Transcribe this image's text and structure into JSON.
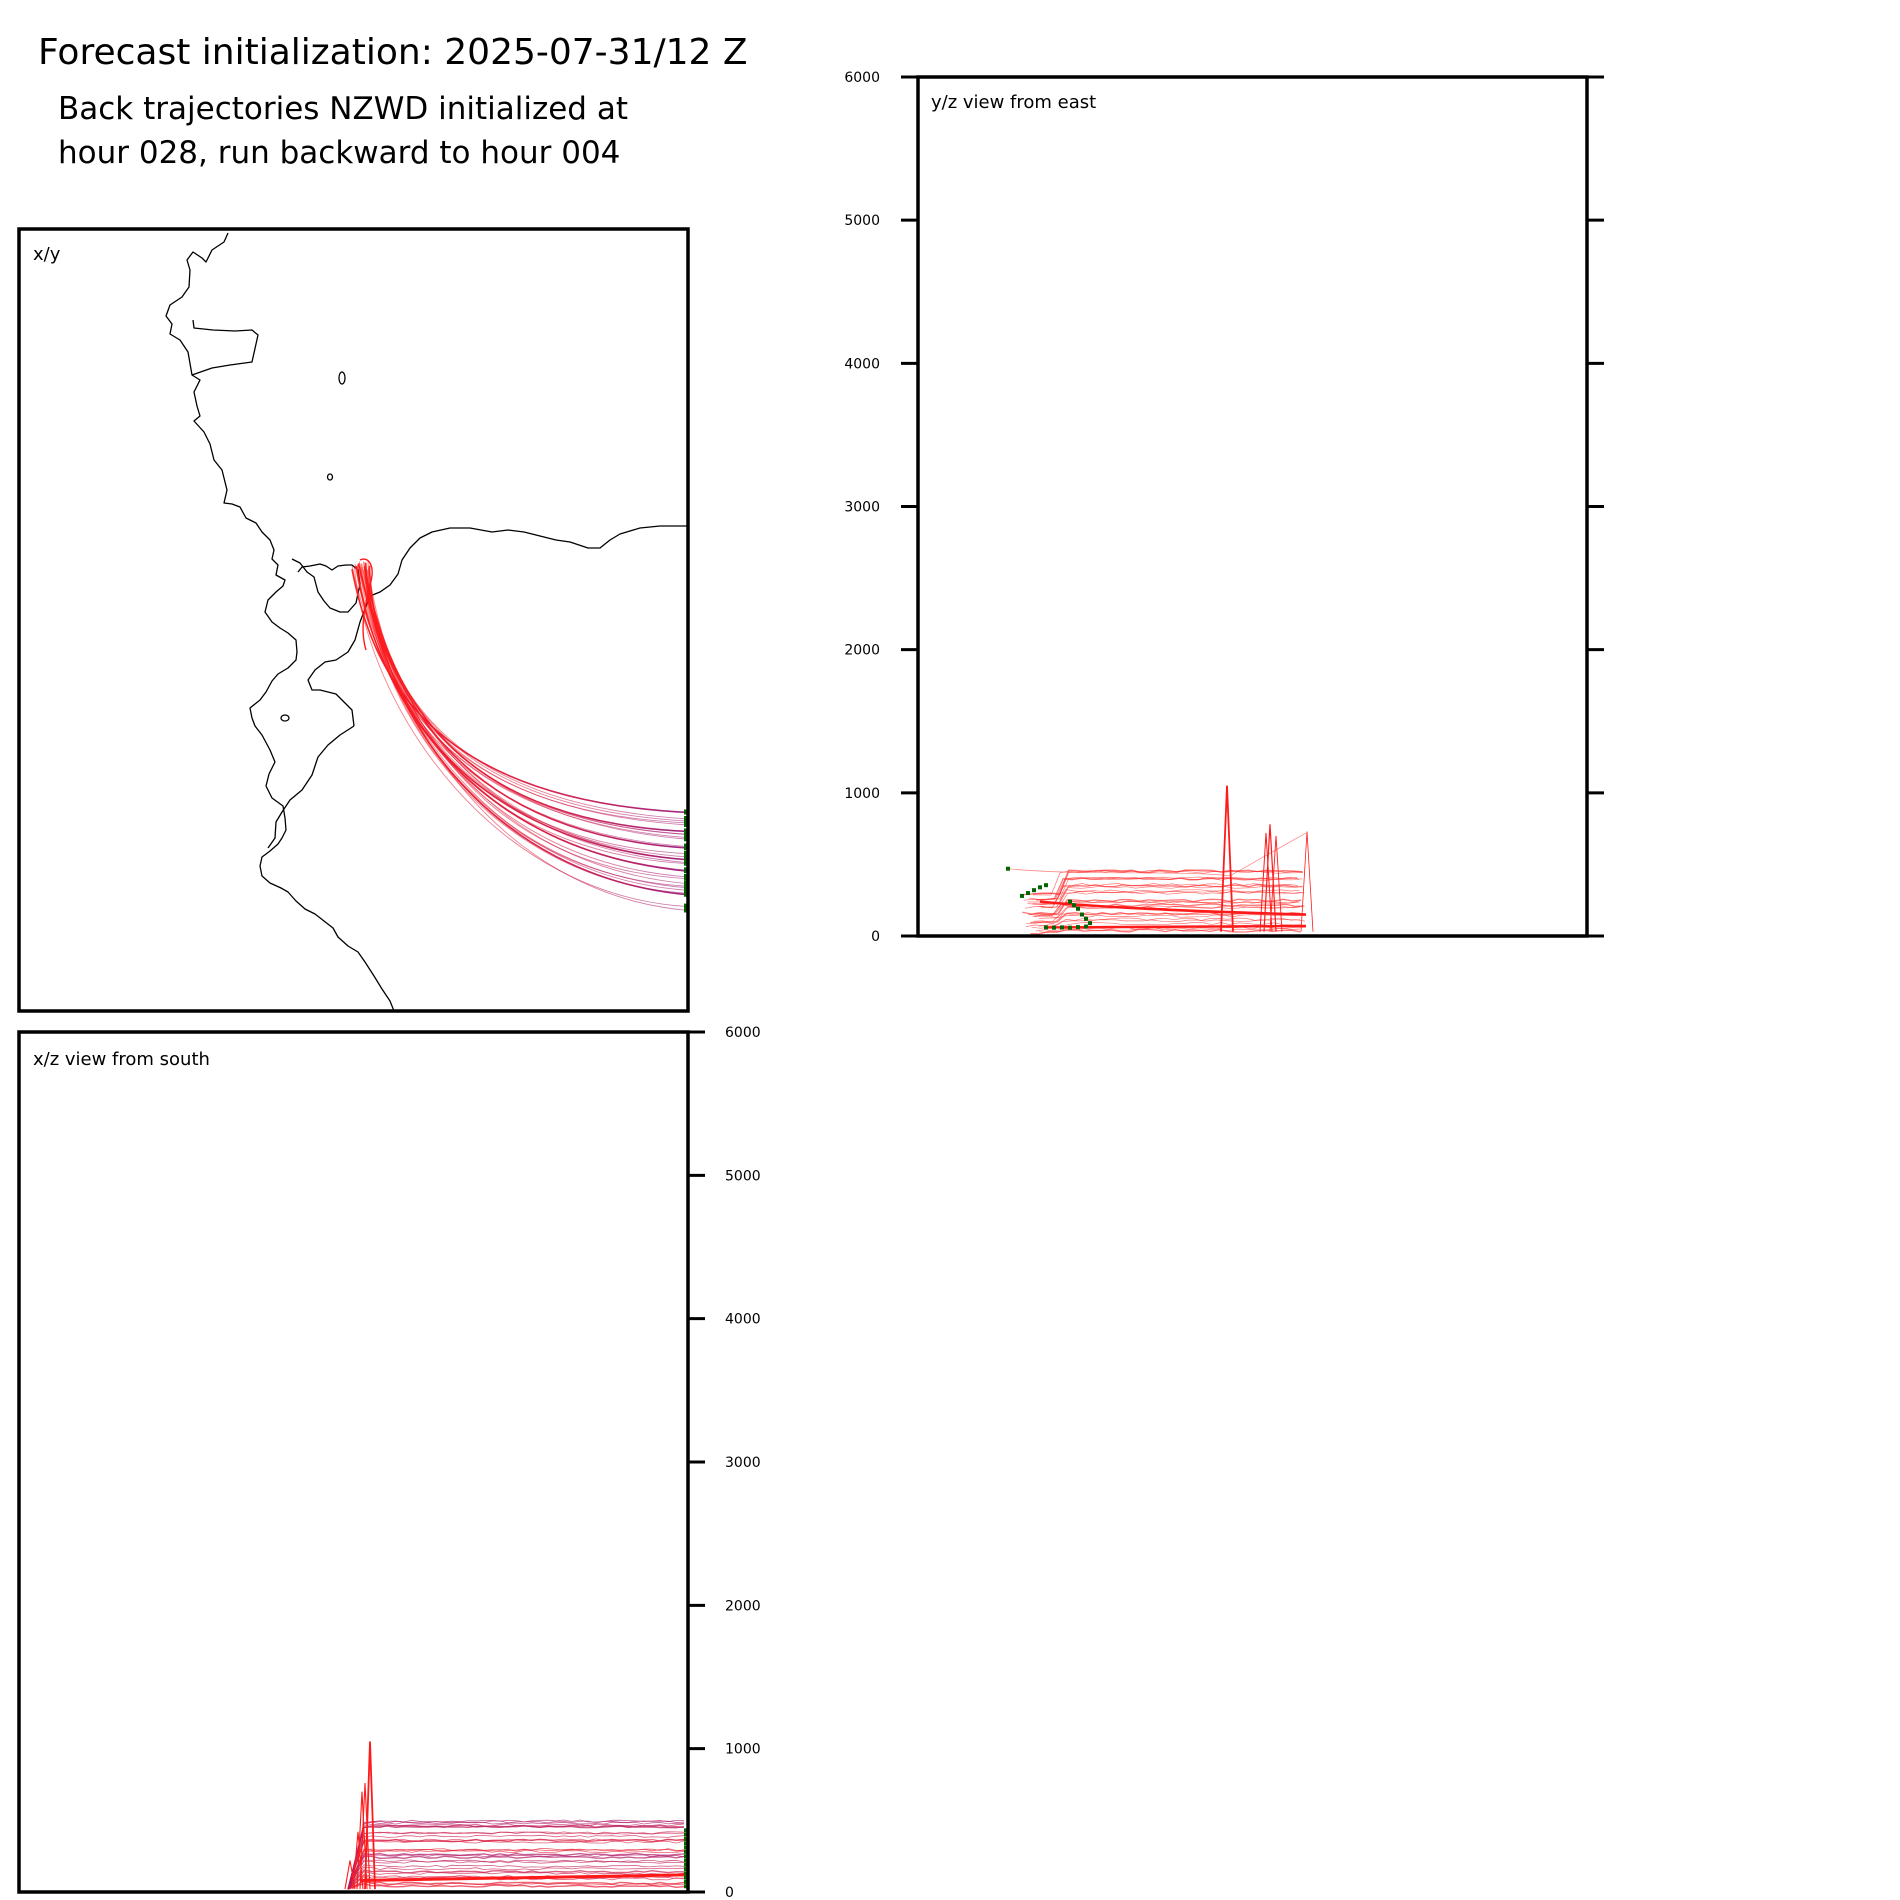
{
  "header": {
    "title": "Forecast initialization: 2025-07-31/12 Z",
    "subtitle_line1": "Back trajectories NZWD initialized at",
    "subtitle_line2": "hour 028, run backward to hour 004"
  },
  "colors": {
    "trajectory_start": "#ff1a1a",
    "trajectory_end": "#8b1a8b",
    "endpoint_marker": "#006400",
    "coastline": "#000000"
  },
  "chart_data": [
    {
      "type": "line",
      "panel": "map",
      "label": "x/y",
      "note": "plan view of back trajectories; trajectories fan from the east edge toward the coast",
      "series_count": 30,
      "trajectory_endpoints_at": "east edge"
    },
    {
      "type": "line",
      "panel": "xz",
      "label": "x/z view from south",
      "ylim": [
        0,
        6000
      ],
      "yticks": [
        "0",
        "1000",
        "2000",
        "3000",
        "4000",
        "5000",
        "6000"
      ],
      "tick_side": "right",
      "peak_height": 1050,
      "typical_heights": [
        50,
        100,
        150,
        200,
        250,
        300,
        350,
        400,
        450,
        500
      ]
    },
    {
      "type": "line",
      "panel": "yz",
      "label": "y/z view from east",
      "ylim": [
        0,
        6000
      ],
      "yticks": [
        "0",
        "1000",
        "2000",
        "3000",
        "4000",
        "5000",
        "6000"
      ],
      "tick_side": "both",
      "peak_height": 1050,
      "secondary_peak_height": 780,
      "typical_heights": [
        50,
        100,
        150,
        200,
        250,
        300,
        350,
        400,
        450
      ]
    }
  ]
}
